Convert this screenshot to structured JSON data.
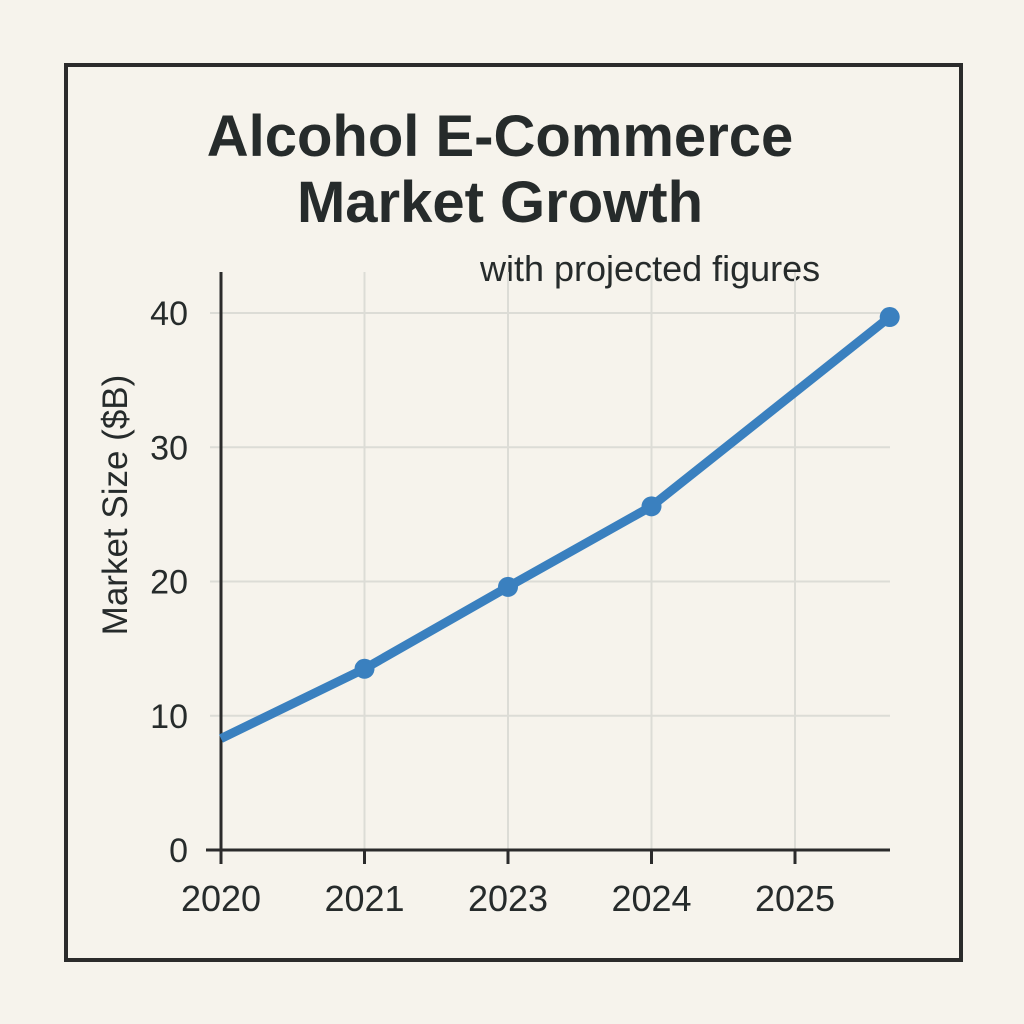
{
  "colors": {
    "background": "#f6f3ec",
    "series": "#3a80bf",
    "axis": "#2b2b2b",
    "grid": "#dcdcd6",
    "text": "#262b2b"
  },
  "chart_data": {
    "type": "line",
    "title_line1": "Alcohol E-Commerce",
    "title_line2": "Market Growth",
    "subtitle": "with projected figures",
    "xlabel": "",
    "ylabel": "Market Size ($B)",
    "categories": [
      "2020",
      "2021",
      "2023",
      "2024",
      "2025"
    ],
    "yticks": [
      0,
      10,
      20,
      30,
      40
    ],
    "ylim": [
      0,
      40
    ],
    "grid": true,
    "series": [
      {
        "values": [
          8.3,
          13.5,
          19.6,
          25.6,
          39.7
        ],
        "x_positions": [
          0,
          1,
          2,
          3,
          4.66
        ]
      }
    ],
    "markers": [
      1,
      2,
      3,
      4
    ]
  }
}
